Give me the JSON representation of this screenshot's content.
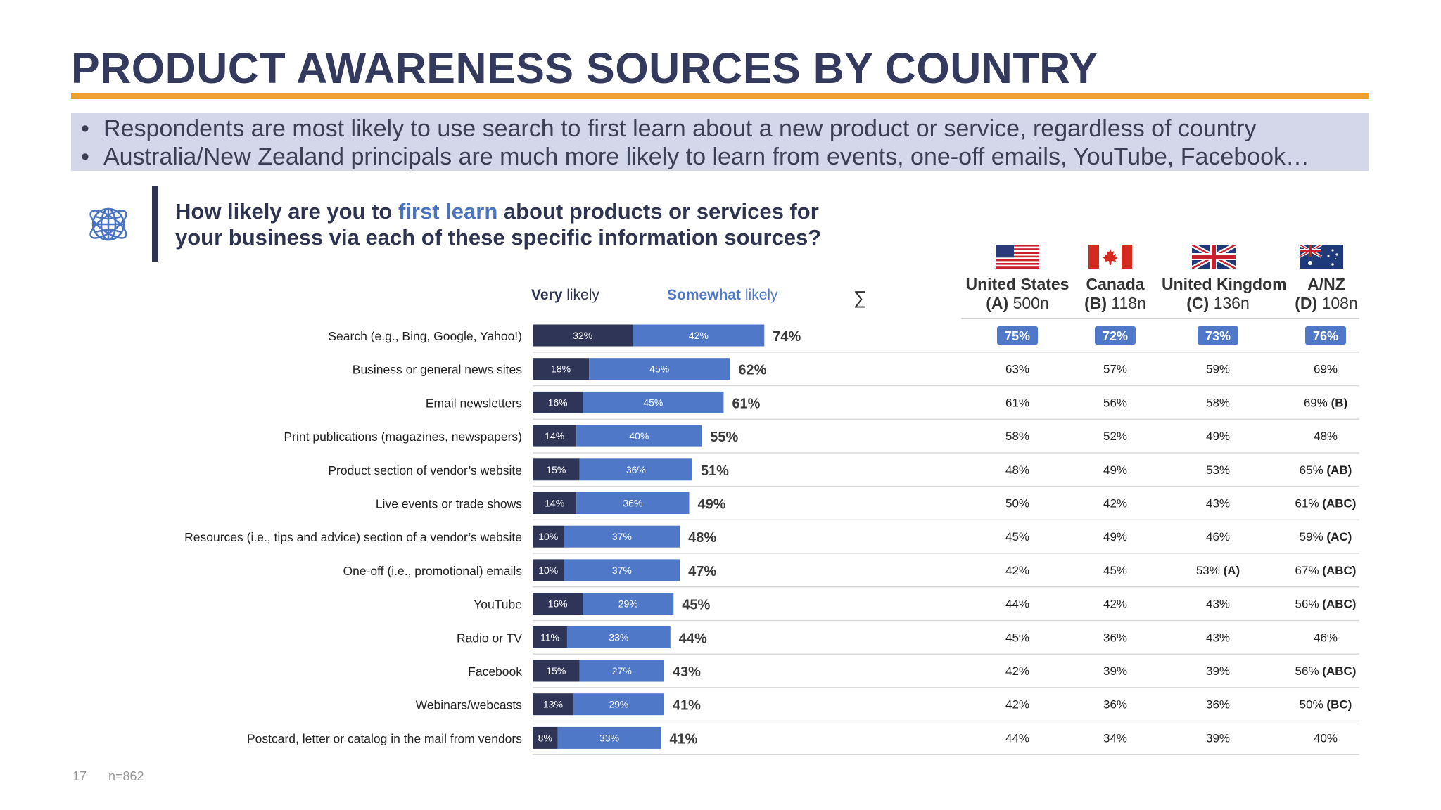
{
  "slide": {
    "title": "PRODUCT AWARENESS SOURCES BY COUNTRY",
    "bullets": [
      "Respondents are most likely to use search to first learn about a new product or service, regardless of country",
      "Australia/New Zealand principals are much more likely to learn from events, one-off emails, YouTube, Facebook…"
    ],
    "question_part1": "How likely are you to ",
    "question_highlight": "first learn",
    "question_part2": " about products or services for",
    "question_line2": "your business via each of these specific information sources?",
    "page_number": "17",
    "sample_size": "n=862",
    "icon": "globe-network-icon"
  },
  "legend": {
    "very_bold": "Very",
    "very_rest": " likely",
    "somewhat_bold": "Somewhat",
    "somewhat_rest": " likely",
    "sum_symbol": "∑"
  },
  "countries": [
    {
      "name": "United States",
      "letter": "(A)",
      "n": " 500n",
      "flag": "us-flag-icon"
    },
    {
      "name": "Canada",
      "letter": "(B)",
      "n": " 118n",
      "flag": "canada-flag-icon"
    },
    {
      "name": "United Kingdom",
      "letter": "(C)",
      "n": " 136n",
      "flag": "uk-flag-icon"
    },
    {
      "name": "A/NZ",
      "letter": "(D)",
      "n": " 108n",
      "flag": "australia-flag-icon"
    }
  ],
  "colors": {
    "title": "#333a5e",
    "accent": "#f0a030",
    "very_likely": "#2f3556",
    "somewhat_likely": "#4f78c8",
    "badge": "#4f78c8"
  },
  "chart_data": {
    "type": "bar",
    "orientation": "horizontal",
    "stacked": true,
    "categories": [
      "Search (e.g., Bing, Google, Yahoo!)",
      "Business or general news sites",
      "Email newsletters",
      "Print publications (magazines, newspapers)",
      "Product section of vendor’s website",
      "Live events or trade shows",
      "Resources (i.e., tips and advice) section of a vendor’s website",
      "One-off (i.e., promotional) emails",
      "YouTube",
      "Radio or TV",
      "Facebook",
      "Webinars/webcasts",
      "Postcard, letter or catalog in the mail from vendors"
    ],
    "series": [
      {
        "name": "Very likely",
        "values": [
          32,
          18,
          16,
          14,
          15,
          14,
          10,
          10,
          16,
          11,
          15,
          13,
          8
        ],
        "labels": [
          "32%",
          "18%",
          "16%",
          "14%",
          "15%",
          "14%",
          "10%",
          "10%",
          "16%",
          "11%",
          "15%",
          "13%",
          "8%"
        ]
      },
      {
        "name": "Somewhat likely",
        "values": [
          42,
          45,
          45,
          40,
          36,
          36,
          37,
          37,
          29,
          33,
          27,
          29,
          33
        ],
        "labels": [
          "42%",
          "45%",
          "45%",
          "40%",
          "36%",
          "36%",
          "37%",
          "37%",
          "29%",
          "33%",
          "27%",
          "29%",
          "33%"
        ]
      }
    ],
    "totals": [
      "74%",
      "62%",
      "61%",
      "55%",
      "51%",
      "49%",
      "48%",
      "47%",
      "45%",
      "44%",
      "43%",
      "41%",
      "41%"
    ],
    "table": [
      [
        {
          "v": "75%"
        },
        {
          "v": "72%"
        },
        {
          "v": "73%"
        },
        {
          "v": "76%"
        }
      ],
      [
        {
          "v": "63%"
        },
        {
          "v": "57%"
        },
        {
          "v": "59%"
        },
        {
          "v": "69%"
        }
      ],
      [
        {
          "v": "61%"
        },
        {
          "v": "56%"
        },
        {
          "v": "58%"
        },
        {
          "v": "69%",
          "sig": "(B)"
        }
      ],
      [
        {
          "v": "58%"
        },
        {
          "v": "52%"
        },
        {
          "v": "49%"
        },
        {
          "v": "48%"
        }
      ],
      [
        {
          "v": "48%"
        },
        {
          "v": "49%"
        },
        {
          "v": "53%"
        },
        {
          "v": "65%",
          "sig": "(AB)"
        }
      ],
      [
        {
          "v": "50%"
        },
        {
          "v": "42%"
        },
        {
          "v": "43%"
        },
        {
          "v": "61%",
          "sig": "(ABC)"
        }
      ],
      [
        {
          "v": "45%"
        },
        {
          "v": "49%"
        },
        {
          "v": "46%"
        },
        {
          "v": "59%",
          "sig": "(AC)"
        }
      ],
      [
        {
          "v": "42%"
        },
        {
          "v": "45%"
        },
        {
          "v": "53%",
          "sig": "(A)"
        },
        {
          "v": "67%",
          "sig": "(ABC)"
        }
      ],
      [
        {
          "v": "44%"
        },
        {
          "v": "42%"
        },
        {
          "v": "43%"
        },
        {
          "v": "56%",
          "sig": "(ABC)"
        }
      ],
      [
        {
          "v": "45%"
        },
        {
          "v": "36%"
        },
        {
          "v": "43%"
        },
        {
          "v": "46%"
        }
      ],
      [
        {
          "v": "42%"
        },
        {
          "v": "39%"
        },
        {
          "v": "39%"
        },
        {
          "v": "56%",
          "sig": "(ABC)"
        }
      ],
      [
        {
          "v": "42%"
        },
        {
          "v": "36%"
        },
        {
          "v": "36%"
        },
        {
          "v": "50%",
          "sig": "(BC)"
        }
      ],
      [
        {
          "v": "44%"
        },
        {
          "v": "34%"
        },
        {
          "v": "39%"
        },
        {
          "v": "40%"
        }
      ]
    ]
  }
}
